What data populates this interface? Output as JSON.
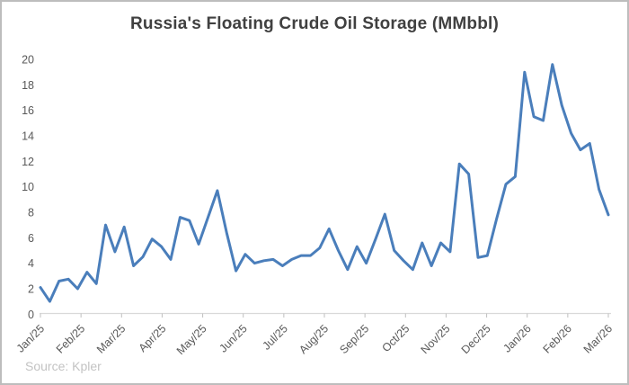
{
  "chart_data": {
    "type": "line",
    "title": "Russia's Floating Crude Oil Storage (MMbbl)",
    "source_note": "Source: Kpler",
    "frequency": "weekly",
    "x_tick_labels": [
      "Jan/25",
      "Feb/25",
      "Mar/25",
      "Apr/25",
      "May/25",
      "Jun/25",
      "Jul/25",
      "Aug/25",
      "Sep/25",
      "Oct/25",
      "Nov/25",
      "Dec/25",
      "Jan/26",
      "Feb/26",
      "Mar/26"
    ],
    "y_ticks": [
      0,
      2,
      4,
      6,
      8,
      10,
      12,
      14,
      16,
      18,
      20
    ],
    "ylim": [
      0,
      20
    ],
    "grid": false,
    "legend": false,
    "line_color": "#4A7EBB",
    "values": [
      2.1,
      1.0,
      2.6,
      2.75,
      2.0,
      3.3,
      2.4,
      7.0,
      4.9,
      6.85,
      3.8,
      4.5,
      5.9,
      5.3,
      4.3,
      7.6,
      7.35,
      5.5,
      7.6,
      9.7,
      6.4,
      3.4,
      4.7,
      4.0,
      4.2,
      4.3,
      3.8,
      4.3,
      4.6,
      4.6,
      5.2,
      6.7,
      5.0,
      3.5,
      5.3,
      4.0,
      5.9,
      7.85,
      5.0,
      4.2,
      3.5,
      5.6,
      3.8,
      5.6,
      4.9,
      11.8,
      11.0,
      4.45,
      4.6,
      7.5,
      10.2,
      10.8,
      19.0,
      15.5,
      15.2,
      19.6,
      16.4,
      14.2,
      12.9,
      13.4,
      9.8,
      7.8
    ]
  },
  "colors": {
    "title_text": "#404040",
    "axis_text": "#595959",
    "axis_line": "#d9d9d9",
    "tick_mark": "#bfbfbf",
    "source_text": "#c3c3c3",
    "frame_border": "#bdbdbd"
  }
}
